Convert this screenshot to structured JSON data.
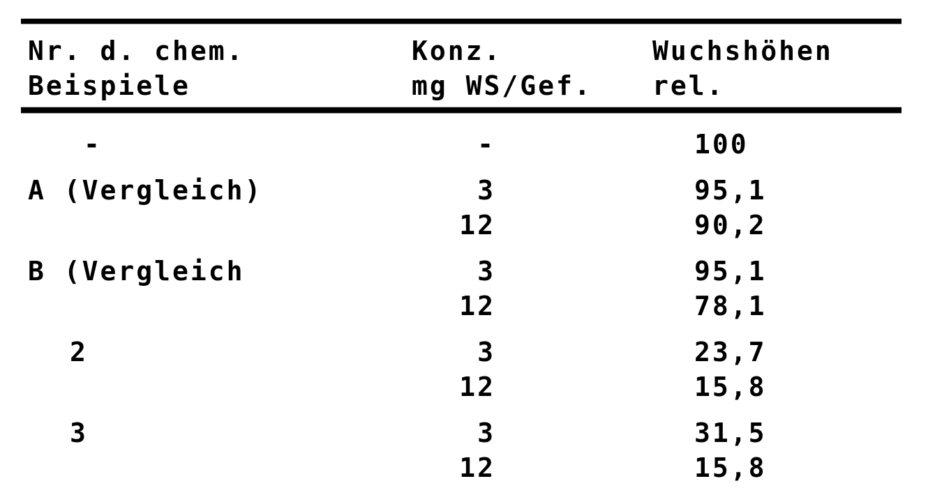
{
  "page": {
    "kind": "scanned-typewriter-table",
    "paper_color": "#ffffff",
    "ink_color": "#000000"
  },
  "table": {
    "col_headers": [
      {
        "line1": "Nr. d. chem.",
        "line2": "Beispiele"
      },
      {
        "line1": "Konz.",
        "line2": "mg WS/Gef."
      },
      {
        "line1": "Wuchshöhen",
        "line2": "rel."
      }
    ],
    "rows": [
      {
        "name": "-",
        "entries": [
          {
            "konz": "-",
            "wert": "100"
          }
        ]
      },
      {
        "name": "A (Vergleich)",
        "entries": [
          {
            "konz": "3",
            "wert": "95,1"
          },
          {
            "konz": "12",
            "wert": "90,2"
          }
        ]
      },
      {
        "name": "B (Vergleich",
        "entries": [
          {
            "konz": "3",
            "wert": "95,1"
          },
          {
            "konz": "12",
            "wert": "78,1"
          }
        ]
      },
      {
        "name": "2",
        "entries": [
          {
            "konz": "3",
            "wert": "23,7"
          },
          {
            "konz": "12",
            "wert": "15,8"
          }
        ]
      },
      {
        "name": "3",
        "entries": [
          {
            "konz": "3",
            "wert": "31,5"
          },
          {
            "konz": "12",
            "wert": "15,8"
          }
        ]
      }
    ]
  }
}
